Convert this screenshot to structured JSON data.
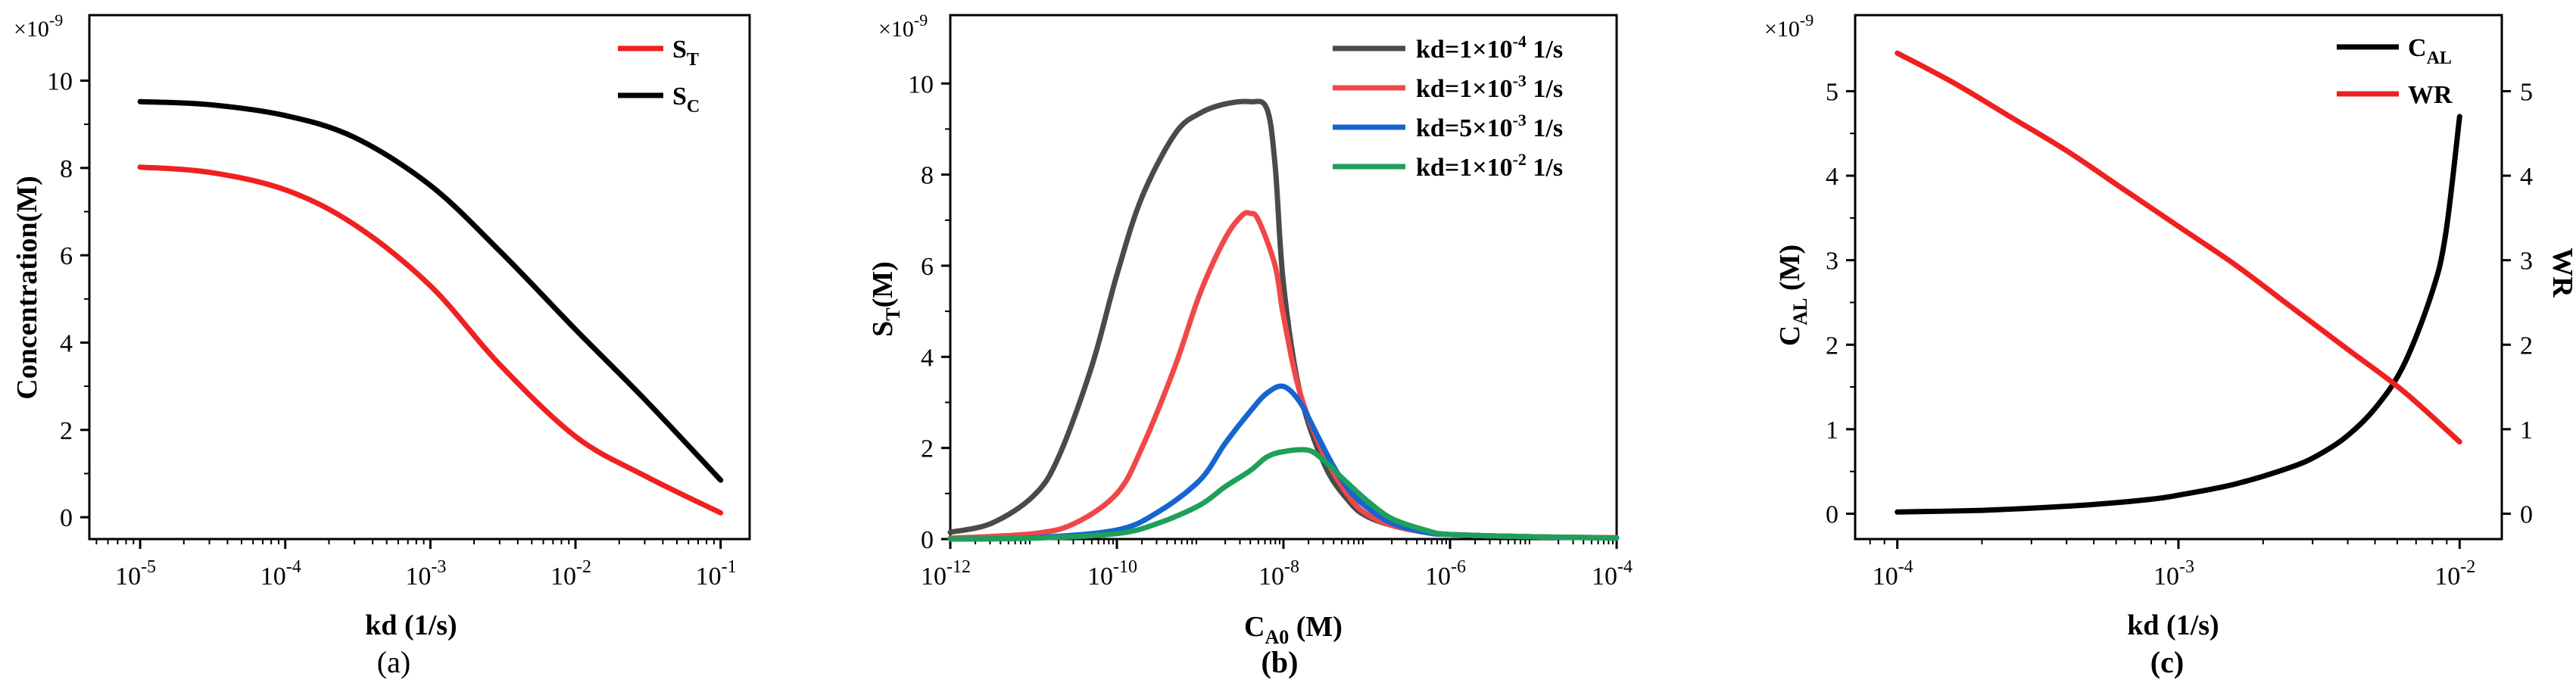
{
  "colors": {
    "axis": "#000000",
    "red": "#f02020",
    "black": "#000000",
    "gray": "#4a4a4a",
    "lightred": "#f04848",
    "blue": "#1565d0",
    "green": "#1fa05a"
  },
  "chart_data": [
    {
      "panel": "a",
      "type": "line",
      "caption": "(a)",
      "xlabel": "kd (1/s)",
      "ylabel": "Concentration(M)",
      "xscale": "log",
      "xlim_exp": [
        -5.35,
        -0.8
      ],
      "ylim": [
        -0.5,
        11.5
      ],
      "ymultiplier": "×10",
      "ymultiplier_exp": "-9",
      "xtick_base": "10",
      "xticks": [
        {
          "exp": -5,
          "label": "-5"
        },
        {
          "exp": -4,
          "label": "-4"
        },
        {
          "exp": -3,
          "label": "-3"
        },
        {
          "exp": -2,
          "label": "-2"
        },
        {
          "exp": -1,
          "label": "-1"
        }
      ],
      "yticks": [
        "0",
        "2",
        "4",
        "6",
        "8",
        "10"
      ],
      "legend": {
        "placement": "top-right",
        "entries": [
          {
            "main": "S",
            "sub": "T",
            "color": "red"
          },
          {
            "main": "S",
            "sub": "C",
            "color": "black"
          }
        ]
      },
      "series": [
        {
          "name": "S_T",
          "color": "red",
          "x": [
            1e-05,
            3e-05,
            0.0001,
            0.0003,
            0.001,
            0.003,
            0.01,
            0.03,
            0.1
          ],
          "y": [
            8.02,
            7.9,
            7.5,
            6.7,
            5.3,
            3.5,
            1.85,
            0.95,
            0.1
          ]
        },
        {
          "name": "S_C",
          "color": "black",
          "x": [
            1e-05,
            3e-05,
            0.0001,
            0.0003,
            0.001,
            0.003,
            0.01,
            0.03,
            0.1
          ],
          "y": [
            9.52,
            9.45,
            9.2,
            8.7,
            7.6,
            6.1,
            4.3,
            2.7,
            0.85
          ]
        }
      ]
    },
    {
      "panel": "b",
      "type": "line",
      "caption": "(b)",
      "xlabel_main": "C",
      "xlabel_sub": "A0",
      "xlabel_rest": " (M)",
      "ylabel_main": "S",
      "ylabel_sub": "T",
      "ylabel_rest": "(M)",
      "xscale": "log",
      "xlim_exp": [
        -12,
        -4
      ],
      "ylim": [
        0,
        11.5
      ],
      "ymultiplier": "×10",
      "ymultiplier_exp": "-9",
      "xtick_base": "10",
      "xticks": [
        {
          "exp": -12,
          "label": "-12"
        },
        {
          "exp": -10,
          "label": "-10"
        },
        {
          "exp": -8,
          "label": "-8"
        },
        {
          "exp": -6,
          "label": "-6"
        },
        {
          "exp": -4,
          "label": "-4"
        }
      ],
      "yticks": [
        "0",
        "2",
        "4",
        "6",
        "8",
        "10"
      ],
      "legend": {
        "placement": "top-right",
        "entries": [
          {
            "pre": "kd=1×10",
            "exp": "-4",
            "post": " 1/s",
            "color": "gray"
          },
          {
            "pre": "kd=1×10",
            "exp": "-3",
            "post": " 1/s",
            "color": "lightred"
          },
          {
            "pre": "kd=5×10",
            "exp": "-3",
            "post": " 1/s",
            "color": "blue"
          },
          {
            "pre": "kd=1×10",
            "exp": "-2",
            "post": " 1/s",
            "color": "green"
          }
        ]
      },
      "series": [
        {
          "name": "kd=1×10^-4 1/s",
          "color": "gray",
          "x_exp": [
            -12,
            -11.5,
            -11,
            -10.7,
            -10.3,
            -10,
            -9.7,
            -9.3,
            -9,
            -8.7,
            -8.4,
            -8.2,
            -8.1,
            -8,
            -7.8,
            -7.5,
            -7.2,
            -7,
            -6.7,
            -6.3,
            -6,
            -5,
            -4
          ],
          "y": [
            0.15,
            0.35,
            0.95,
            1.8,
            3.8,
            5.8,
            7.5,
            8.9,
            9.35,
            9.55,
            9.6,
            9.45,
            8.2,
            5.6,
            3.2,
            1.6,
            0.8,
            0.5,
            0.3,
            0.15,
            0.1,
            0.05,
            0.03
          ]
        },
        {
          "name": "kd=1×10^-3 1/s",
          "color": "lightred",
          "x_exp": [
            -12,
            -11,
            -10.5,
            -10,
            -9.7,
            -9.3,
            -9,
            -8.7,
            -8.5,
            -8.4,
            -8.3,
            -8.1,
            -8,
            -7.8,
            -7.5,
            -7.2,
            -7,
            -6.7,
            -6.3,
            -6,
            -5,
            -4
          ],
          "y": [
            0.02,
            0.12,
            0.35,
            1.0,
            2.0,
            3.8,
            5.4,
            6.6,
            7.1,
            7.15,
            7.0,
            6.0,
            4.9,
            3.2,
            1.8,
            0.9,
            0.55,
            0.3,
            0.15,
            0.1,
            0.05,
            0.03
          ]
        },
        {
          "name": "kd=5×10^-3 1/s",
          "color": "blue",
          "x_exp": [
            -12,
            -11,
            -10,
            -9.5,
            -9,
            -8.7,
            -8.4,
            -8.2,
            -8,
            -7.8,
            -7.6,
            -7.4,
            -7.2,
            -7,
            -6.7,
            -6.3,
            -6,
            -5,
            -4
          ],
          "y": [
            0.0,
            0.03,
            0.2,
            0.6,
            1.3,
            2.1,
            2.8,
            3.2,
            3.35,
            3.0,
            2.3,
            1.6,
            1.05,
            0.7,
            0.35,
            0.15,
            0.1,
            0.05,
            0.02
          ]
        },
        {
          "name": "kd=1×10^-2 1/s",
          "color": "green",
          "x_exp": [
            -12,
            -11,
            -10,
            -9.5,
            -9,
            -8.7,
            -8.4,
            -8.2,
            -8,
            -7.7,
            -7.5,
            -7.3,
            -7,
            -6.7,
            -6.3,
            -6,
            -5,
            -4
          ],
          "y": [
            0.0,
            0.02,
            0.12,
            0.35,
            0.75,
            1.15,
            1.5,
            1.8,
            1.92,
            1.95,
            1.7,
            1.35,
            0.85,
            0.45,
            0.2,
            0.1,
            0.05,
            0.02
          ]
        }
      ]
    },
    {
      "panel": "c",
      "type": "line",
      "caption": "(c)",
      "xlabel": "kd (1/s)",
      "ylabel_main": "C",
      "ylabel_sub": "AL",
      "ylabel_rest": " (M)",
      "y2label": "WR",
      "xscale": "log",
      "xlim_exp": [
        -4.15,
        -1.85
      ],
      "ylim": [
        -0.3,
        5.9
      ],
      "y2lim": [
        -0.3,
        5.9
      ],
      "ymultiplier": "×10",
      "ymultiplier_exp": "-9",
      "xtick_base": "10",
      "xticks": [
        {
          "exp": -4,
          "label": "-4"
        },
        {
          "exp": -3,
          "label": "-3"
        },
        {
          "exp": -2,
          "label": "-2"
        }
      ],
      "yticks": [
        "0",
        "1",
        "2",
        "3",
        "4",
        "5"
      ],
      "y2ticks": [
        "0",
        "1",
        "2",
        "3",
        "4",
        "5"
      ],
      "legend": {
        "placement": "top-right",
        "entries": [
          {
            "main": "C",
            "sub": "AL",
            "color": "black"
          },
          {
            "main": "WR",
            "sub": "",
            "color": "red"
          }
        ]
      },
      "series": [
        {
          "name": "C_AL",
          "axis": "left",
          "color": "black",
          "x_exp": [
            -4,
            -3.7,
            -3.5,
            -3.3,
            -3.1,
            -3,
            -2.8,
            -2.6,
            -2.5,
            -2.4,
            -2.3,
            -2.2,
            -2.1,
            -2.05,
            -2
          ],
          "y": [
            0.02,
            0.04,
            0.07,
            0.11,
            0.17,
            0.22,
            0.35,
            0.55,
            0.7,
            0.92,
            1.25,
            1.75,
            2.6,
            3.3,
            4.7
          ]
        },
        {
          "name": "WR",
          "axis": "right",
          "color": "red",
          "x_exp": [
            -4,
            -3.8,
            -3.6,
            -3.4,
            -3.2,
            -3,
            -2.8,
            -2.6,
            -2.4,
            -2.2,
            -2
          ],
          "y": [
            5.45,
            5.1,
            4.7,
            4.3,
            3.85,
            3.4,
            2.95,
            2.45,
            1.95,
            1.45,
            0.85
          ]
        }
      ]
    }
  ]
}
